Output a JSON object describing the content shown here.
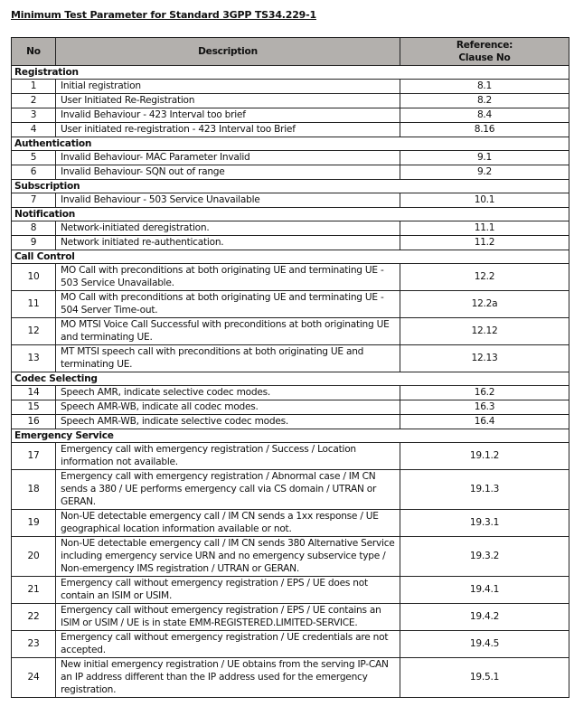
{
  "title": "Minimum Test Parameter for Standard 3GPP TS34.229-1",
  "headers": {
    "no": "No",
    "description": "Description",
    "reference_line1": "Reference:",
    "reference_line2": "Clause No"
  },
  "sections": [
    {
      "name": "Registration",
      "rows": [
        {
          "no": "1",
          "description": "Initial registration",
          "ref": "8.1"
        },
        {
          "no": "2",
          "description": "User Initiated Re-Registration",
          "ref": "8.2"
        },
        {
          "no": "3",
          "description": "Invalid Behaviour - 423 Interval too brief",
          "ref": "8.4"
        },
        {
          "no": "4",
          "description": "User initiated re-registration - 423 Interval too Brief",
          "ref": "8.16"
        }
      ]
    },
    {
      "name": "Authentication",
      "rows": [
        {
          "no": "5",
          "description": "Invalid Behaviour- MAC Parameter Invalid",
          "ref": "9.1"
        },
        {
          "no": "6",
          "description": "Invalid Behaviour- SQN out of range",
          "ref": "9.2"
        }
      ]
    },
    {
      "name": "Subscription",
      "rows": [
        {
          "no": "7",
          "description": "Invalid Behaviour - 503 Service Unavailable",
          "ref": "10.1"
        }
      ]
    },
    {
      "name": "Notification",
      "rows": [
        {
          "no": "8",
          "description": "Network-initiated deregistration.",
          "ref": "11.1"
        },
        {
          "no": "9",
          "description": "Network initiated re-authentication.",
          "ref": "11.2"
        }
      ]
    },
    {
      "name": "Call Control",
      "rows": [
        {
          "no": "10",
          "description": "MO Call with preconditions at both originating UE and terminating UE - 503 Service Unavailable.",
          "ref": "12.2"
        },
        {
          "no": "11",
          "description": "MO Call with preconditions at both originating UE and terminating UE - 504 Server Time-out.",
          "ref": "12.2a"
        },
        {
          "no": "12",
          "description": "MO MTSI Voice Call Successful with preconditions at both originating UE and terminating UE.",
          "ref": "12.12"
        },
        {
          "no": "13",
          "description": "MT MTSI speech call with preconditions at both originating UE and terminating UE.",
          "ref": "12.13"
        }
      ]
    },
    {
      "name": "Codec Selecting",
      "rows": [
        {
          "no": "14",
          "description": "Speech AMR, indicate selective codec modes.",
          "ref": "16.2"
        },
        {
          "no": "15",
          "description": "Speech AMR-WB, indicate all codec modes.",
          "ref": "16.3"
        },
        {
          "no": "16",
          "description": "Speech AMR-WB, indicate selective codec modes.",
          "ref": "16.4"
        }
      ]
    },
    {
      "name": "Emergency Service",
      "rows": [
        {
          "no": "17",
          "description": "Emergency call with emergency registration / Success / Location information not available.",
          "ref": "19.1.2"
        },
        {
          "no": "18",
          "description": "Emergency call with emergency registration / Abnormal case / IM CN sends a 380 / UE performs emergency call via CS domain / UTRAN or GERAN.",
          "ref": "19.1.3"
        },
        {
          "no": "19",
          "description": "Non-UE detectable emergency call / IM CN sends a 1xx response / UE geographical location information available or not.",
          "ref": "19.3.1"
        },
        {
          "no": "20",
          "description": "Non-UE detectable emergency call / IM CN sends 380 Alternative Service including emergency service URN and no emergency subservice type / Non-emergency IMS registration / UTRAN or GERAN.",
          "ref": "19.3.2"
        },
        {
          "no": "21",
          "description": "Emergency call without emergency registration / EPS / UE does not contain an ISIM or USIM.",
          "ref": "19.4.1"
        },
        {
          "no": "22",
          "description": "Emergency call without emergency registration / EPS / UE contains an ISIM or USIM / UE is in state EMM-REGISTERED.LIMITED-SERVICE.",
          "ref": "19.4.2"
        },
        {
          "no": "23",
          "description": "Emergency call without emergency registration / UE credentials are not accepted.",
          "ref": "19.4.5"
        },
        {
          "no": "24",
          "description": "New initial emergency registration / UE obtains from the serving IP-CAN an IP address different than the IP address used for the emergency registration.",
          "ref": "19.5.1"
        }
      ]
    }
  ],
  "colors": {
    "header_bg": "#b3b0ad",
    "border": "#222222"
  }
}
